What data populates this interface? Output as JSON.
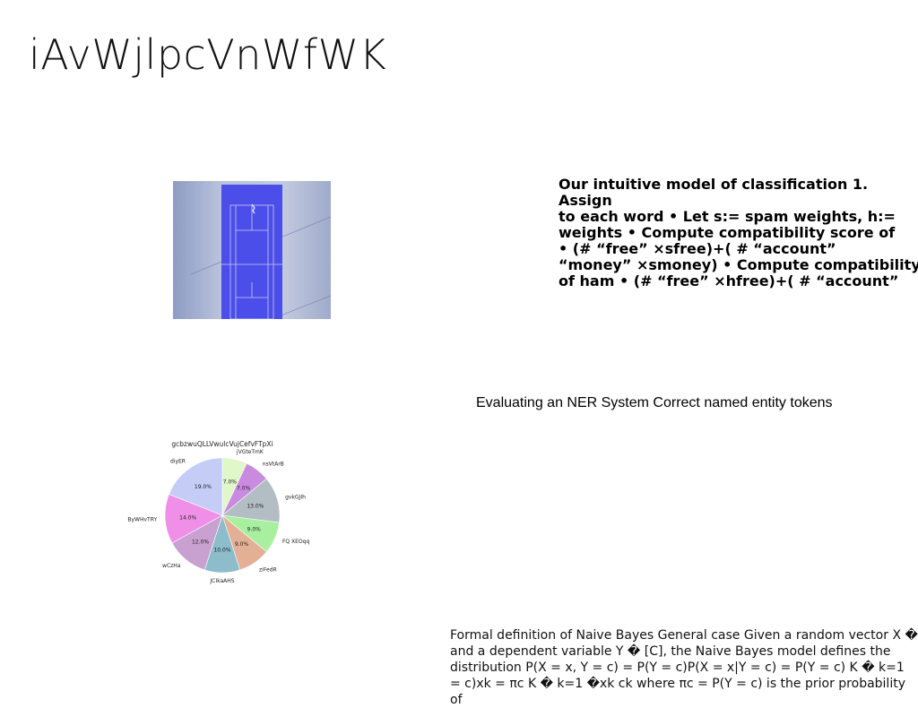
{
  "slide": {
    "title": "iAvWjlpcVnWfWK",
    "bold_paragraph": "Our intuitive model of classification 1. Assign\nto each word • Let s:= spam weights, h:=\nweights • Compute compatibility score of\n• (# “free” ×sfree)+( # “account”\n“money” ×smoney) • Compute compatibility\nof ham • (# “free” ×hfree)+( # “account”",
    "ner_caption": "Evaluating an NER System Correct named entity tokens",
    "naive_bayes_paragraph": "Formal definition of Naive Bayes General case Given a random vector X �\nand a dependent variable Y � [C], the Naive Bayes model defines the\ndistribution P(X = x, Y = c) = P(Y = c)P(X = x|Y = c) = P(Y = c) K � k=1\n= c)xk = πc K � k=1 �xk ck where πc = P(Y = c) is the prior probability of"
  },
  "photo": {
    "alt": "tennis-court-aerial",
    "colors": {
      "background": "#aab4cf",
      "court": "#4a4de8",
      "lines": "#c9ccf5"
    }
  },
  "chart_data": {
    "type": "pie",
    "title": "gcbzwuQLLVwulcVujCefvFTpXi",
    "categories": [
      "jVGteTmK",
      "nsVtArB",
      "gvkGJIh",
      "FQ XEOqq",
      "ziFedR",
      "JCIkaAHS",
      "wCzHa",
      "ByWHvTRY",
      "diyER"
    ],
    "values": [
      7.0,
      7.0,
      13.0,
      9.0,
      9.0,
      10.0,
      12.0,
      14.0,
      19.0
    ],
    "value_labels": [
      "7.0%",
      "7.0%",
      "13.0%",
      "9.0%",
      "9.0%",
      "10.0%",
      "12.0%",
      "14.0%",
      "19.0%"
    ],
    "colors": [
      "#dff7c9",
      "#c98be0",
      "#b3bdc4",
      "#a8f0a0",
      "#e3b096",
      "#8dbcca",
      "#c9a1d1",
      "#ef8fe8",
      "#c5cdf6"
    ],
    "start": "top",
    "direction": "clockwise"
  }
}
